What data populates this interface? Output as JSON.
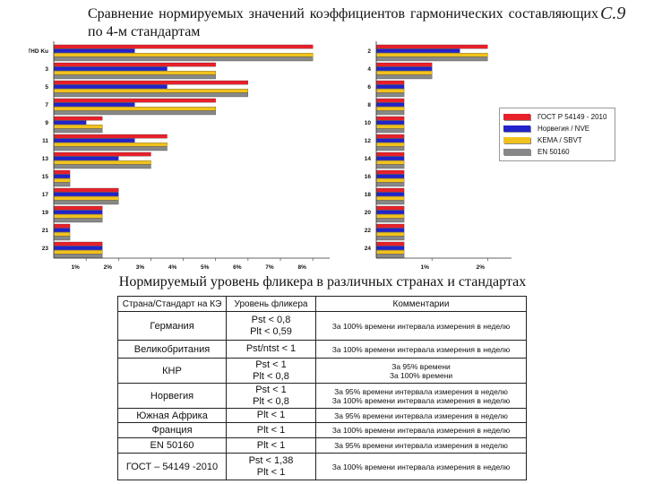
{
  "header": {
    "title": "Сравнение нормируемых значений коэффициентов гармонических составляющих по 4-м стандартам",
    "slide_number": "С.9"
  },
  "colors": {
    "gost": "#e8202a",
    "norway": "#2222cc",
    "kema": "#f2c21c",
    "en50160": "#888888"
  },
  "legend": {
    "items": [
      {
        "label": "ГОСТ Р 54149 - 2010",
        "color": "#e8202a"
      },
      {
        "label": "Норвегия / NVE",
        "color": "#2222cc"
      },
      {
        "label": "KEMA / SBVT",
        "color": "#f2c21c"
      },
      {
        "label": "EN 50160",
        "color": "#888888"
      }
    ]
  },
  "chart_data": [
    {
      "type": "bar",
      "orientation": "horizontal",
      "categories": [
        "THD Ku",
        "3",
        "5",
        "7",
        "9",
        "11",
        "13",
        "15",
        "17",
        "19",
        "21",
        "23"
      ],
      "x_ticks": [
        "1%",
        "2%",
        "3%",
        "4%",
        "5%",
        "6%",
        "7%",
        "8%"
      ],
      "xlim": [
        0,
        8.3
      ],
      "series": [
        {
          "name": "ГОСТ Р 54149 - 2010",
          "values": [
            8,
            5,
            6,
            5,
            1.5,
            3.5,
            3,
            0.5,
            2,
            1.5,
            0.5,
            1.5
          ]
        },
        {
          "name": "Норвегия / NVE",
          "values": [
            2.5,
            3.5,
            3.5,
            2.5,
            1.0,
            2.5,
            2.0,
            0.5,
            2.0,
            1.5,
            0.5,
            1.5
          ]
        },
        {
          "name": "KEMA / SBVT",
          "values": [
            8,
            5,
            6,
            5,
            1.5,
            3.5,
            3,
            0.5,
            2,
            1.5,
            0.5,
            1.5
          ]
        },
        {
          "name": "EN 50160",
          "values": [
            8,
            5,
            6,
            5,
            1.5,
            3.5,
            3,
            0.5,
            2,
            1.5,
            0.5,
            1.5
          ]
        }
      ]
    },
    {
      "type": "bar",
      "orientation": "horizontal",
      "categories": [
        "2",
        "4",
        "6",
        "8",
        "10",
        "12",
        "14",
        "16",
        "18",
        "20",
        "22",
        "24"
      ],
      "x_ticks": [
        "1%",
        "2%"
      ],
      "xlim": [
        0,
        2.3
      ],
      "series": [
        {
          "name": "ГОСТ Р 54149 - 2010",
          "values": [
            2,
            1,
            0.5,
            0.5,
            0.5,
            0.5,
            0.5,
            0.5,
            0.5,
            0.5,
            0.5,
            0.5
          ]
        },
        {
          "name": "Норвегия / NVE",
          "values": [
            1.5,
            1.0,
            0.5,
            0.5,
            0.5,
            0.5,
            0.5,
            0.5,
            0.5,
            0.5,
            0.5,
            0.5
          ]
        },
        {
          "name": "KEMA / SBVT",
          "values": [
            2,
            1,
            0.5,
            0.5,
            0.5,
            0.5,
            0.5,
            0.5,
            0.5,
            0.5,
            0.5,
            0.5
          ]
        },
        {
          "name": "EN 50160",
          "values": [
            2,
            1,
            0.5,
            0.5,
            0.5,
            0.5,
            0.5,
            0.5,
            0.5,
            0.5,
            0.5,
            0.5
          ]
        }
      ]
    }
  ],
  "flicker": {
    "title": "Нормируемый уровень фликера в различных странах и стандартах",
    "headers": [
      "Страна/Стандарт на КЭ",
      "Уровень фликера",
      "Комментарии"
    ],
    "rows": [
      {
        "country": "Германия",
        "level": [
          "Pst < 0,8",
          "Plt < 0,59"
        ],
        "comment": [
          "За 100% времени интервала измерения в неделю"
        ]
      },
      {
        "country": "Великобритания",
        "level": [
          "Pst/ntst < 1"
        ],
        "comment": [
          "За 100% времени интервала измерения в неделю"
        ]
      },
      {
        "country": "КНР",
        "level": [
          "Pst < 1",
          "Plt < 0,8"
        ],
        "comment": [
          "За 95% времени",
          "За 100% времени"
        ]
      },
      {
        "country": "Норвегия",
        "level": [
          "Pst < 1",
          "Plt < 0,8"
        ],
        "comment": [
          "За 95% времени интервала измерения в неделю",
          "За 100% времени интервала измерения в неделю"
        ]
      },
      {
        "country": "Южная Африка",
        "level": [
          "Plt < 1"
        ],
        "comment": [
          "За 95% времени интервала измерения в неделю"
        ]
      },
      {
        "country": "Франция",
        "level": [
          "Plt < 1"
        ],
        "comment": [
          "За 100% времени интервала измерения в неделю"
        ]
      },
      {
        "country": "EN 50160",
        "level": [
          "Plt < 1"
        ],
        "comment": [
          "За 95% времени интервала измерения в неделю"
        ]
      },
      {
        "country": "ГОСТ – 54149 -2010",
        "level": [
          "Pst < 1,38",
          "Plt < 1"
        ],
        "comment": [
          "За 100% времени интервала измерения в неделю"
        ]
      }
    ]
  }
}
